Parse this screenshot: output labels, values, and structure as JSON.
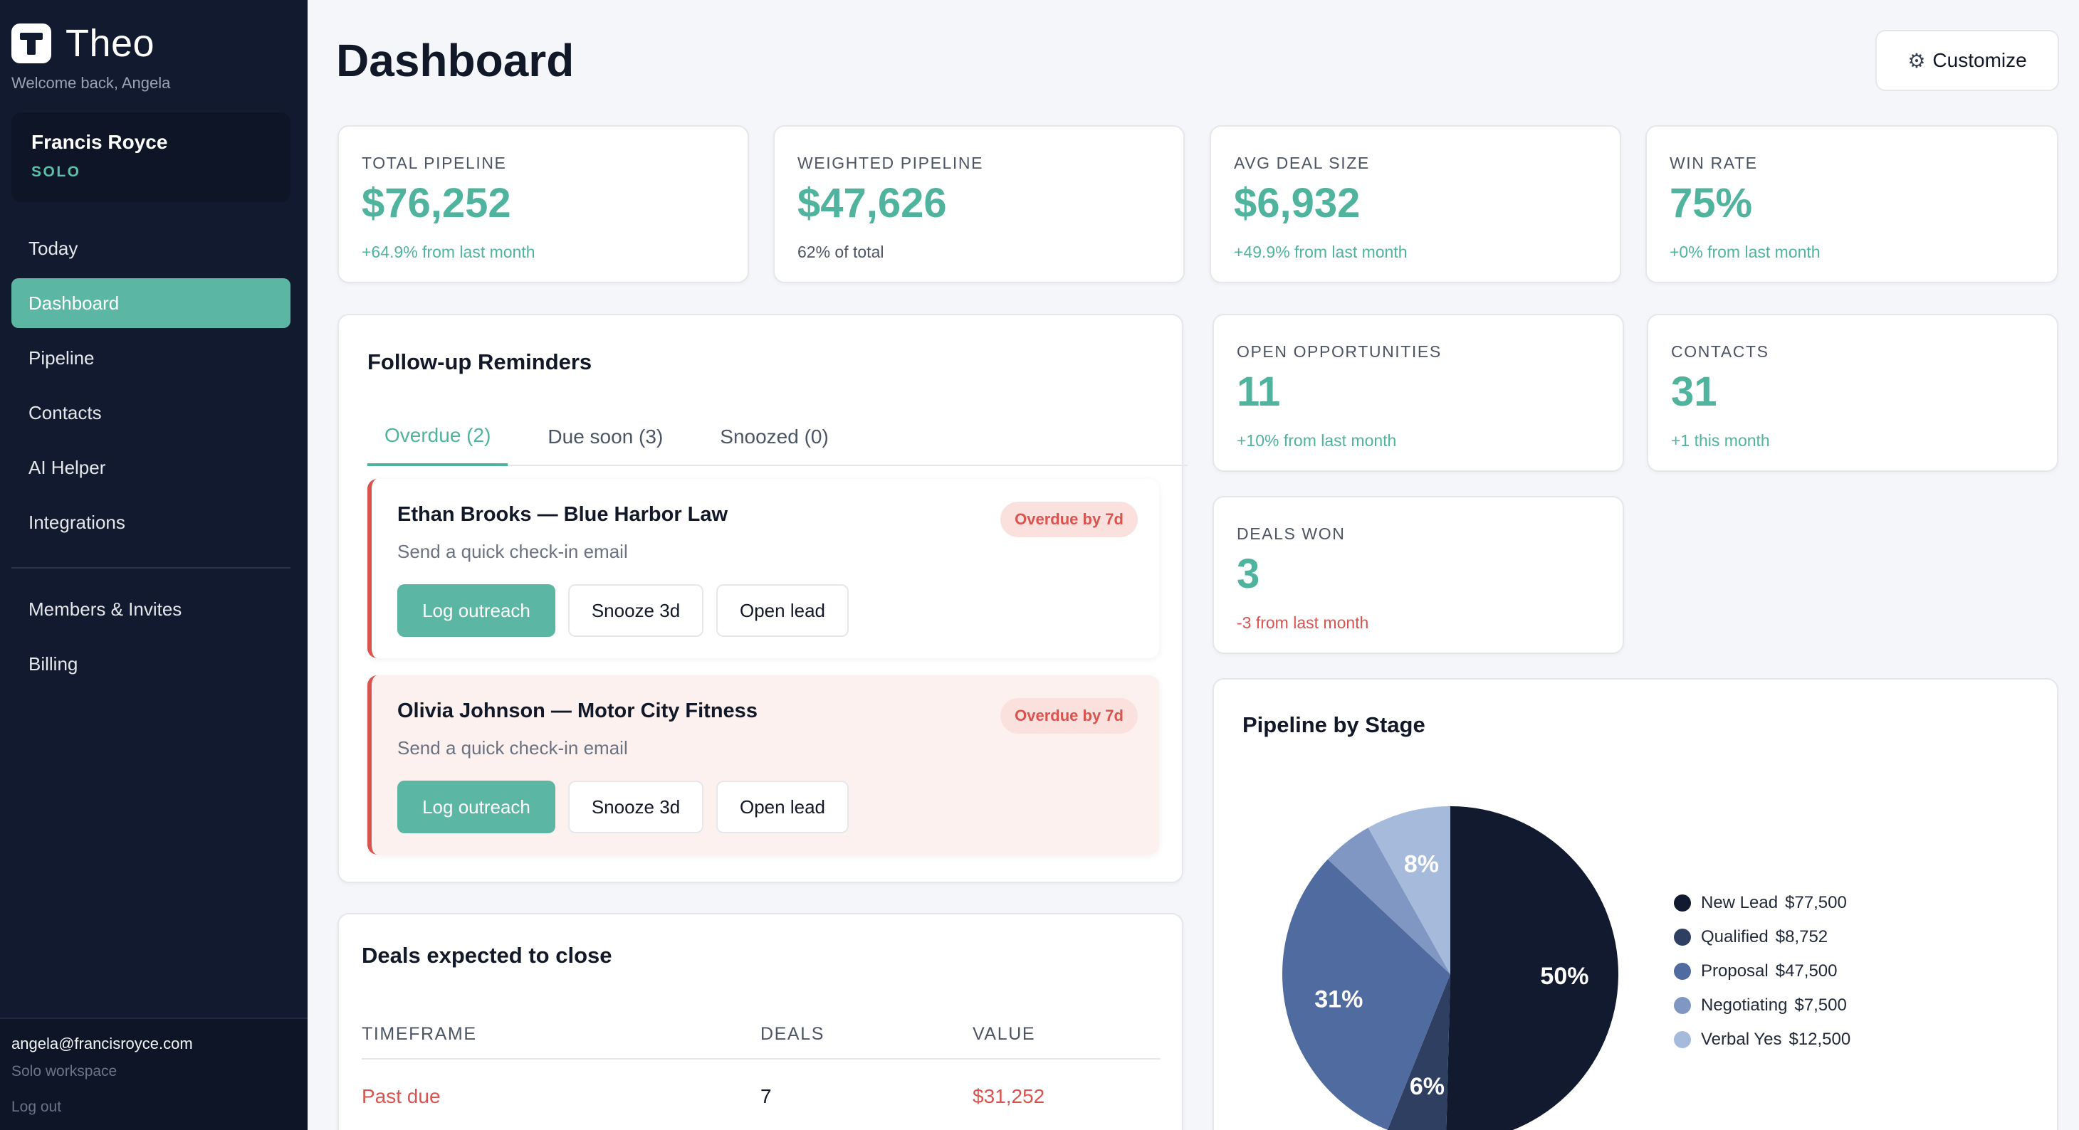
{
  "sidebar": {
    "brand": "Theo",
    "welcome": "Welcome back, Angela",
    "workspace": {
      "name": "Francis Royce",
      "plan": "SOLO"
    },
    "nav": [
      "Today",
      "Dashboard",
      "Pipeline",
      "Contacts",
      "AI Helper",
      "Integrations"
    ],
    "nav_secondary": [
      "Members & Invites",
      "Billing"
    ],
    "active_item": "Dashboard",
    "footer": {
      "email": "angela@francisroyce.com",
      "workspace": "Solo workspace",
      "logout": "Log out"
    }
  },
  "header": {
    "title": "Dashboard",
    "customize_label": "Customize",
    "customize_icon": "gear-icon"
  },
  "stats": {
    "total_pipeline": {
      "label": "TOTAL PIPELINE",
      "value": "$76,252",
      "sub": "+64.9% from last month"
    },
    "weighted_pipeline": {
      "label": "WEIGHTED PIPELINE",
      "value": "$47,626",
      "sub": "62% of total"
    },
    "avg_deal_size": {
      "label": "AVG DEAL SIZE",
      "value": "$6,932",
      "sub": "+49.9% from last month"
    },
    "win_rate": {
      "label": "WIN RATE",
      "value": "75%",
      "sub": "+0% from last month"
    },
    "open_opportunities": {
      "label": "OPEN OPPORTUNITIES",
      "value": "11",
      "sub": "+10% from last month"
    },
    "contacts": {
      "label": "CONTACTS",
      "value": "31",
      "sub": "+1 this month"
    },
    "deals_won": {
      "label": "DEALS WON",
      "value": "3",
      "sub": "-3 from last month"
    }
  },
  "reminders": {
    "title": "Follow-up Reminders",
    "tabs": [
      "Overdue (2)",
      "Due soon (3)",
      "Snoozed (0)"
    ],
    "active_tab": "Overdue (2)",
    "items": [
      {
        "name": "Ethan Brooks — Blue Harbor Law",
        "note": "Send a quick check-in email",
        "badge": "Overdue by 7d"
      },
      {
        "name": "Olivia Johnson — Motor City Fitness",
        "note": "Send a quick check-in email",
        "badge": "Overdue by 7d"
      }
    ],
    "actions": {
      "log": "Log outreach",
      "snooze": "Snooze 3d",
      "open": "Open lead"
    }
  },
  "deals": {
    "title": "Deals expected to close",
    "columns": [
      "TIMEFRAME",
      "DEALS",
      "VALUE"
    ],
    "rows": [
      {
        "timeframe": "Past due",
        "deals": "7",
        "value": "$31,252"
      }
    ]
  },
  "pipeline": {
    "title": "Pipeline by Stage",
    "colors": {
      "New Lead": "#111a2e",
      "Qualified": "#2f3f62",
      "Proposal": "#506b9f",
      "Negotiating": "#7f97c2",
      "Verbal Yes": "#a6bbdc"
    },
    "legend": [
      {
        "stage": "New Lead",
        "value": "$77,500"
      },
      {
        "stage": "Qualified",
        "value": "$8,752"
      },
      {
        "stage": "Proposal",
        "value": "$47,500"
      },
      {
        "stage": "Negotiating",
        "value": "$7,500"
      },
      {
        "stage": "Verbal Yes",
        "value": "$12,500"
      }
    ]
  },
  "chart_data": {
    "type": "pie",
    "categories": [
      "New Lead",
      "Qualified",
      "Proposal",
      "Negotiating",
      "Verbal Yes"
    ],
    "values": [
      77500,
      8752,
      47500,
      7500,
      12500
    ],
    "slice_labels": [
      "50%",
      "6%",
      "31%",
      "",
      "8%"
    ],
    "title": "Pipeline by Stage",
    "legend_position": "right"
  }
}
